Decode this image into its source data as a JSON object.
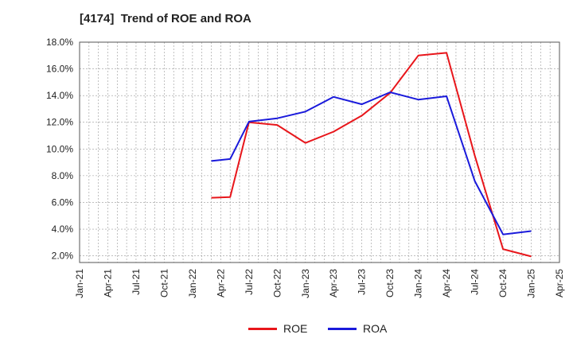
{
  "title": "[4174]  Trend of ROE and ROA",
  "chart_data": {
    "type": "line",
    "title": "[4174]  Trend of ROE and ROA",
    "xlabel": "",
    "ylabel": "",
    "x_ticks": [
      "Jan-21",
      "Apr-21",
      "Jul-21",
      "Oct-21",
      "Jan-22",
      "Apr-22",
      "Jul-22",
      "Oct-22",
      "Jan-23",
      "Apr-23",
      "Jul-23",
      "Oct-23",
      "Jan-24",
      "Apr-24",
      "Jul-24",
      "Oct-24",
      "Jan-25",
      "Apr-25"
    ],
    "y_ticks": [
      "2.0%",
      "4.0%",
      "6.0%",
      "8.0%",
      "10.0%",
      "12.0%",
      "14.0%",
      "16.0%",
      "18.0%"
    ],
    "ylim": [
      1.5,
      18.0
    ],
    "grid": true,
    "legend_position": "bottom",
    "x": [
      "Mar-22",
      "May-22",
      "Jul-22",
      "Oct-22",
      "Jan-23",
      "Apr-23",
      "Jul-23",
      "Oct-23",
      "Jan-24",
      "Apr-24",
      "Jul-24",
      "Oct-24",
      "Jan-25"
    ],
    "series": [
      {
        "name": "ROE",
        "color": "#e8161b",
        "values": [
          6.35,
          6.4,
          12.0,
          11.8,
          10.45,
          11.3,
          12.5,
          14.2,
          17.0,
          17.2,
          9.5,
          2.5,
          1.95
        ]
      },
      {
        "name": "ROA",
        "color": "#1a1adb",
        "values": [
          9.1,
          9.25,
          12.05,
          12.3,
          12.8,
          13.9,
          13.35,
          14.25,
          13.7,
          13.95,
          7.6,
          3.6,
          3.85
        ]
      }
    ]
  }
}
